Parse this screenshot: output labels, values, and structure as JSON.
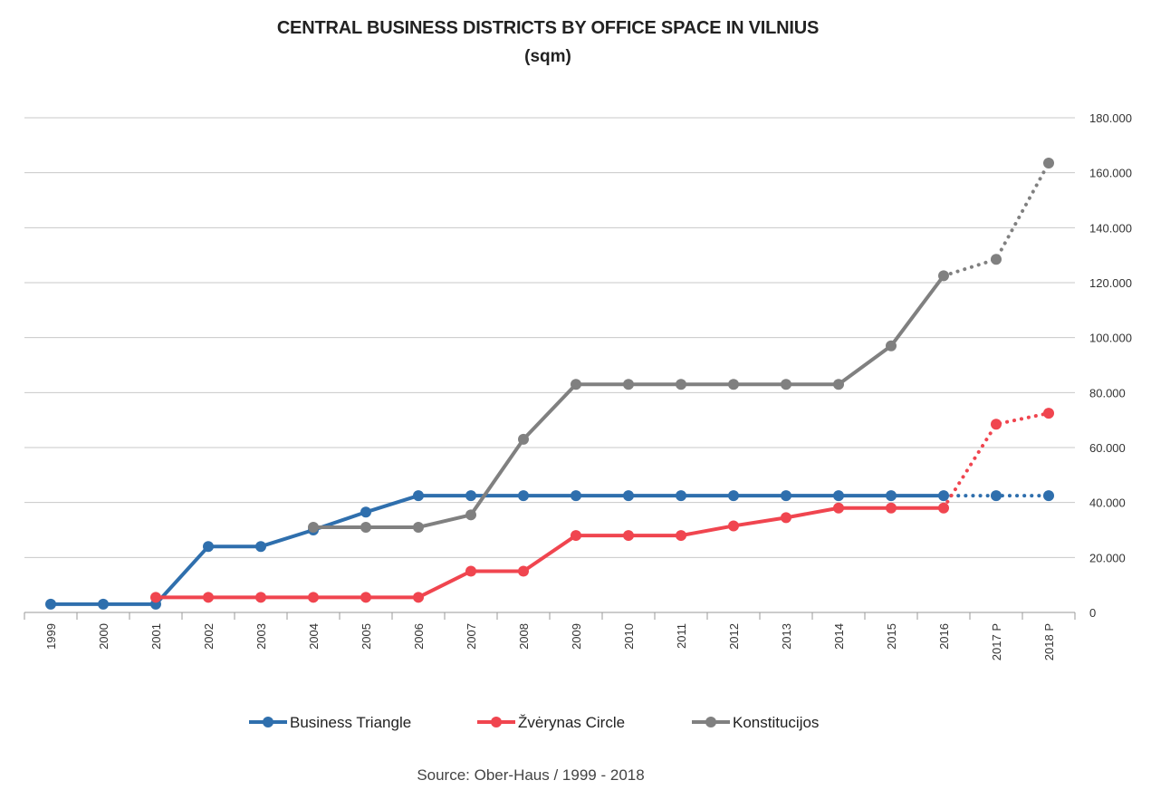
{
  "chart_data": {
    "type": "line",
    "title": "CENTRAL BUSINESS DISTRICTS BY OFFICE SPACE IN VILNIUS",
    "subtitle": "(sqm)",
    "source": "Source: Ober-Haus  / 1999 - 2018",
    "categories": [
      "1999",
      "2000",
      "2001",
      "2002",
      "2003",
      "2004",
      "2005",
      "2006",
      "2007",
      "2008",
      "2009",
      "2010",
      "2011",
      "2012",
      "2013",
      "2014",
      "2015",
      "2016",
      "2017 P",
      "2018 P"
    ],
    "ylim": [
      0,
      180000
    ],
    "yticks": [
      0,
      20000,
      40000,
      60000,
      80000,
      100000,
      120000,
      140000,
      160000,
      180000
    ],
    "ytick_labels": [
      "0",
      "20.000",
      "40.000",
      "60.000",
      "80.000",
      "100.000",
      "120.000",
      "140.000",
      "160.000",
      "180.000"
    ],
    "grid": true,
    "legend_position": "bottom",
    "projection_start_index": 17,
    "series": [
      {
        "name": "Business Triangle",
        "color": "#2f6fad",
        "values": [
          3000,
          3000,
          3000,
          24000,
          24000,
          30000,
          36500,
          42500,
          42500,
          42500,
          42500,
          42500,
          42500,
          42500,
          42500,
          42500,
          42500,
          42500,
          42500,
          42500
        ]
      },
      {
        "name": "Žvėrynas Circle",
        "color": "#f0454f",
        "values": [
          null,
          null,
          5500,
          5500,
          5500,
          5500,
          5500,
          5500,
          15000,
          15000,
          28000,
          28000,
          28000,
          31500,
          34500,
          38000,
          38000,
          38000,
          68500,
          72500
        ]
      },
      {
        "name": "Konstitucijos",
        "color": "#808080",
        "values": [
          null,
          null,
          null,
          null,
          null,
          31000,
          31000,
          31000,
          35500,
          63000,
          83000,
          83000,
          83000,
          83000,
          83000,
          83000,
          97000,
          122500,
          128500,
          163500
        ]
      }
    ]
  }
}
